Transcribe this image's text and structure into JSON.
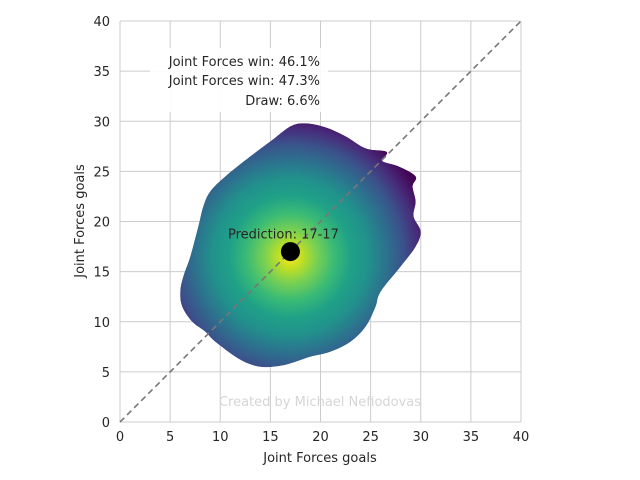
{
  "chart_data": {
    "type": "heatmap",
    "title": "",
    "xlabel": "Joint Forces goals",
    "ylabel": "Joint Forces goals",
    "xlim": [
      0,
      40
    ],
    "ylim": [
      0,
      40
    ],
    "xticks": [
      "0",
      "5",
      "10",
      "15",
      "20",
      "25",
      "30",
      "35",
      "40"
    ],
    "yticks": [
      "0",
      "5",
      "10",
      "15",
      "20",
      "25",
      "30",
      "35",
      "40"
    ],
    "grid": true,
    "colormap": "viridis",
    "density": {
      "center": [
        17,
        16.5
      ],
      "boundary": [
        [
          9.5,
          8
        ],
        [
          12,
          6.2
        ],
        [
          14,
          5.5
        ],
        [
          16,
          5.6
        ],
        [
          17.5,
          6
        ],
        [
          19,
          6.5
        ],
        [
          21,
          7
        ],
        [
          23,
          8
        ],
        [
          24.5,
          9.5
        ],
        [
          25.5,
          11.5
        ],
        [
          26,
          13
        ],
        [
          28,
          15.5
        ],
        [
          29.5,
          17.5
        ],
        [
          30,
          19
        ],
        [
          29.3,
          20.5
        ],
        [
          29.5,
          22
        ],
        [
          29.2,
          23.5
        ],
        [
          29.5,
          24.5
        ],
        [
          27.8,
          25.5
        ],
        [
          26.2,
          26
        ],
        [
          26.5,
          26.5
        ],
        [
          26.5,
          27
        ],
        [
          24.5,
          27.3
        ],
        [
          22.5,
          28.5
        ],
        [
          20.5,
          29.4
        ],
        [
          18.5,
          29.8
        ],
        [
          17,
          29.5
        ],
        [
          15,
          28
        ],
        [
          13,
          26.5
        ],
        [
          10.5,
          24.5
        ],
        [
          9,
          23
        ],
        [
          8.3,
          21.5
        ],
        [
          7.8,
          19.5
        ],
        [
          7,
          16.5
        ],
        [
          6.3,
          14.5
        ],
        [
          6,
          13
        ],
        [
          6.2,
          11.5
        ],
        [
          7.2,
          10
        ],
        [
          8.5,
          9
        ]
      ]
    },
    "prediction_point": {
      "x": 17,
      "y": 17,
      "color": "#000000"
    },
    "diagonal": {
      "from": [
        0,
        0
      ],
      "to": [
        40,
        40
      ],
      "color": "#777777"
    },
    "annotations": {
      "win_a": "Joint Forces win: 46.1%",
      "win_b": "Joint Forces win: 47.3%",
      "draw": "Draw: 6.6%",
      "prediction": "Prediction: 17-17",
      "credit": "Created by Michael Nefiodovas"
    }
  }
}
